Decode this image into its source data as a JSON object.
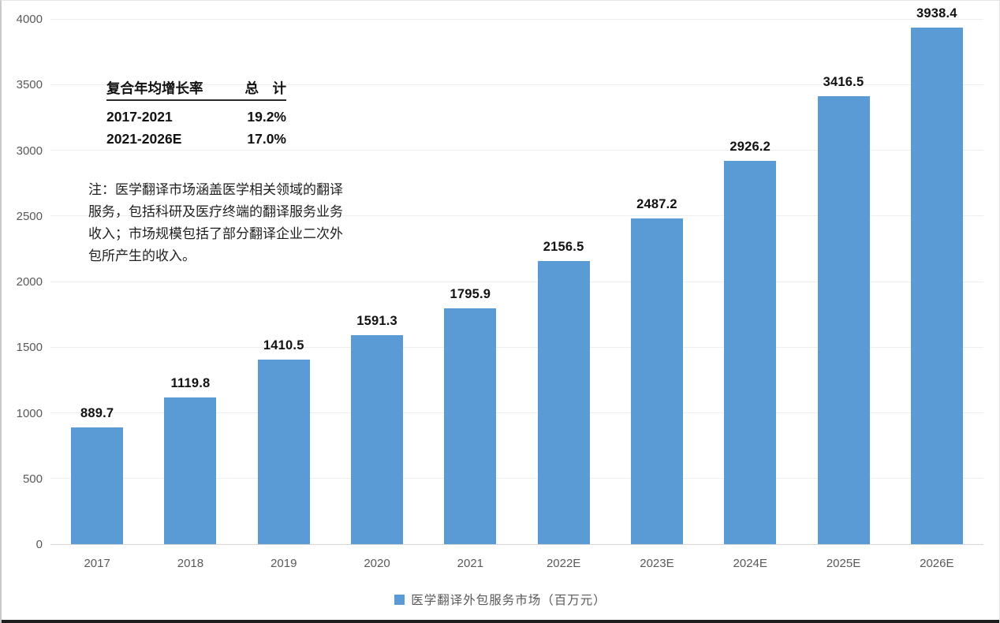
{
  "chart_data": {
    "type": "bar",
    "categories": [
      "2017",
      "2018",
      "2019",
      "2020",
      "2021",
      "2022E",
      "2023E",
      "2024E",
      "2025E",
      "2026E"
    ],
    "values": [
      889.7,
      1119.8,
      1410.5,
      1591.3,
      1795.9,
      2156.5,
      2487.2,
      2926.2,
      3416.5,
      3938.4
    ],
    "series_name": "医学翻译外包服务市场（百万元）",
    "title": "",
    "xlabel": "",
    "ylabel": "",
    "ylim": [
      0,
      4000
    ],
    "yticks": [
      0,
      500,
      1000,
      1500,
      2000,
      2500,
      3000,
      3500,
      4000
    ],
    "grid": true,
    "legend_position": "bottom",
    "bar_color": "#5B9BD5",
    "value_label_color": "#121212",
    "axis_label_color": "#595959"
  },
  "cagr_table": {
    "header": {
      "metric": "复合年均增长率",
      "total": "总　计"
    },
    "rows": [
      {
        "period": "2017-2021",
        "value": "19.2%"
      },
      {
        "period": "2021-2026E",
        "value": "17.0%"
      }
    ]
  },
  "note": {
    "lines": [
      "注：医学翻译市场涵盖医学相关领域的翻译",
      "服务，包括科研及医疗终端的翻译服务业务",
      "收入；市场规模包括了部分翻译企业二次外",
      "包所产生的收入。"
    ]
  },
  "legend": {
    "swatch_color": "#5B9BD5",
    "label": "医学翻译外包服务市场（百万元）"
  }
}
